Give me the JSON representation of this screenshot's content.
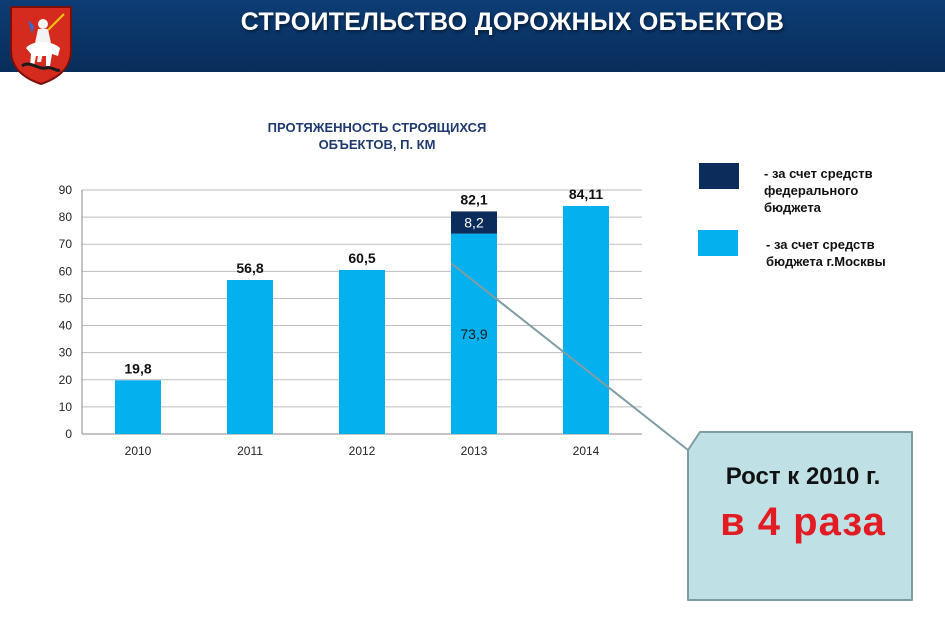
{
  "header": {
    "title": "СТРОИТЕЛЬСТВО ДОРОЖНЫХ ОБЪЕКТОВ"
  },
  "colors": {
    "header_bg": "#0a3668",
    "federal": "#0c2d5b",
    "moscow": "#05b0ef",
    "callout_bg": "#bfe1e6",
    "callout_text_red": "#e31b23"
  },
  "chart_data": {
    "type": "bar",
    "title_line1": "ПРОТЯЖЕННОСТЬ СТРОЯЩИХСЯ",
    "title_line2": "ОБЪЕКТОВ, П. КМ",
    "categories": [
      "2010",
      "2011",
      "2012",
      "2013",
      "2014"
    ],
    "stacked": true,
    "series": [
      {
        "name": "- за счет средств бюджета г.Москвы",
        "values": [
          19.8,
          56.8,
          60.5,
          73.9,
          84.11
        ],
        "color": "#05b0ef"
      },
      {
        "name": "- за счет средств федерального бюджета",
        "values": [
          0,
          0,
          0,
          8.2,
          0
        ],
        "color": "#0c2d5b"
      }
    ],
    "total_labels": [
      "19,8",
      "56,8",
      "60,5",
      "82,1",
      "84,11"
    ],
    "segment_labels": {
      "moscow_2013": "73,9",
      "federal_2013": "8,2"
    },
    "yticks": [
      0,
      10,
      20,
      30,
      40,
      50,
      60,
      70,
      80,
      90
    ],
    "ylim": [
      0,
      90
    ],
    "grid": true,
    "legend_position": "right"
  },
  "legend": {
    "federal_lines": [
      "- за счет средств",
      "федерального",
      "бюджета"
    ],
    "moscow_lines": [
      "- за счет средств",
      "бюджета г.Москвы"
    ]
  },
  "callout": {
    "line1": "Рост к 2010 г.",
    "line2": "в 4 раза"
  }
}
